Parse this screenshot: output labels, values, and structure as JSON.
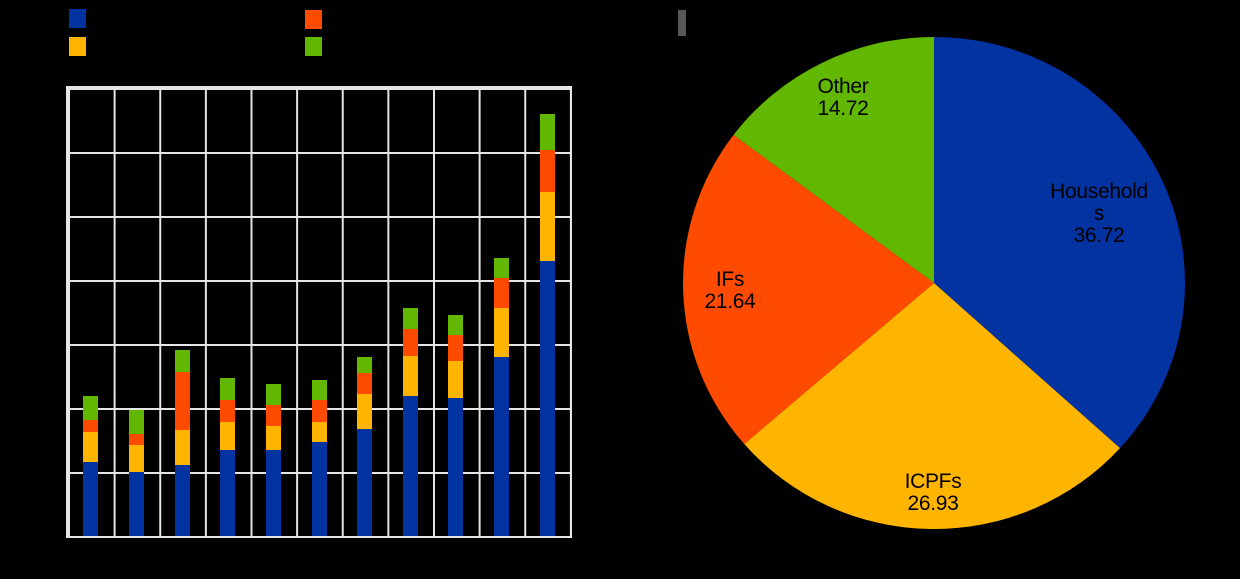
{
  "canvas": {
    "background": "#000000"
  },
  "legend": {
    "labels_visible": false,
    "note": "legend text is rendered black on black background (not readable)",
    "swatches": [
      {
        "series": "blue",
        "color": "#0333A0"
      },
      {
        "series": "orange",
        "color": "#FF4B00"
      },
      {
        "series": "yellow",
        "color": "#FFB400"
      },
      {
        "series": "green",
        "color": "#62B700"
      }
    ]
  },
  "title_bar": {
    "color": "#575757"
  },
  "chart_data": [
    {
      "type": "bar",
      "stacked": true,
      "title": "",
      "xlabel": "",
      "ylabel": "",
      "axis_labels_visible": false,
      "note": "axis tick labels invisible (black text on black); values estimated in gridline units, y range 0-7 gridlines",
      "grid": {
        "rows": 7,
        "cols": 11,
        "color": "#E6E6E6"
      },
      "ylim": [
        0,
        7
      ],
      "categories": [
        "1",
        "2",
        "3",
        "4",
        "5",
        "6",
        "7",
        "8",
        "9",
        "10",
        "11"
      ],
      "stack_order_bottom_to_top": [
        "blue",
        "yellow",
        "orange",
        "green"
      ],
      "series": [
        {
          "name": "blue",
          "color": "#0333A0",
          "values": [
            1.16,
            1.0,
            1.11,
            1.34,
            1.34,
            1.47,
            1.67,
            2.19,
            2.16,
            2.8,
            4.3
          ]
        },
        {
          "name": "yellow",
          "color": "#FFB400",
          "values": [
            0.46,
            0.43,
            0.55,
            0.44,
            0.38,
            0.31,
            0.55,
            0.62,
            0.58,
            0.76,
            1.08
          ]
        },
        {
          "name": "orange",
          "color": "#FF4B00",
          "values": [
            0.19,
            0.17,
            0.91,
            0.34,
            0.33,
            0.34,
            0.33,
            0.43,
            0.41,
            0.47,
            0.65
          ]
        },
        {
          "name": "green",
          "color": "#62B700",
          "values": [
            0.38,
            0.37,
            0.34,
            0.35,
            0.32,
            0.32,
            0.24,
            0.33,
            0.3,
            0.32,
            0.56
          ]
        }
      ]
    },
    {
      "type": "pie",
      "start_angle_deg": 0,
      "direction": "clockwise",
      "slices": [
        {
          "label": "Households",
          "value": 36.72,
          "color": "#0333A0"
        },
        {
          "label": "ICPFs",
          "value": 26.93,
          "color": "#FFB400"
        },
        {
          "label": "IFs",
          "value": 21.64,
          "color": "#FF4B00"
        },
        {
          "label": "Other",
          "value": 14.72,
          "color": "#62B700"
        }
      ],
      "labels": {
        "households": {
          "lines": [
            "Household",
            "s",
            "36.72"
          ]
        },
        "icpfs": {
          "lines": [
            "ICPFs",
            "26.93"
          ]
        },
        "ifs": {
          "lines": [
            "IFs",
            "21.64"
          ]
        },
        "other": {
          "lines": [
            "Other",
            "14.72"
          ]
        }
      }
    }
  ]
}
